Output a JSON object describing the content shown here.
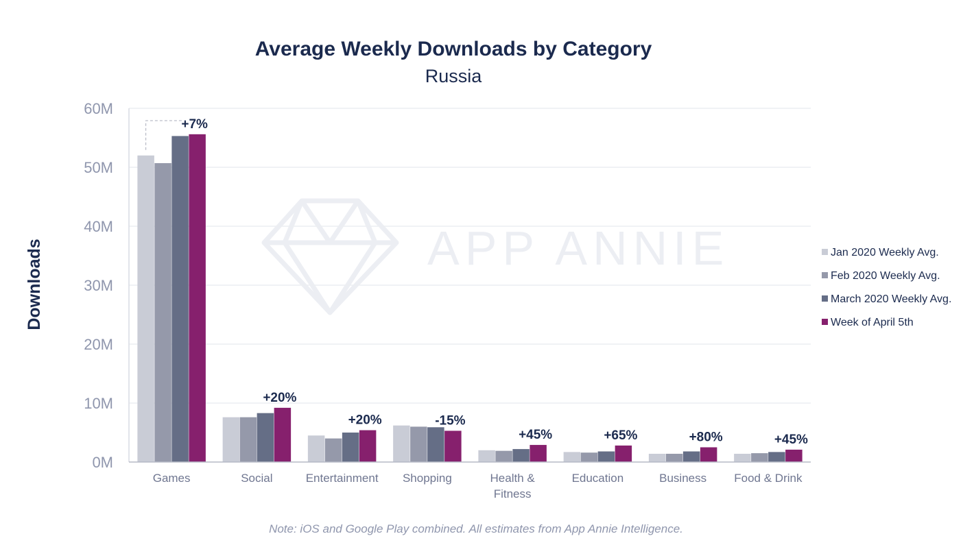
{
  "chart_data": {
    "type": "bar",
    "title": "Average Weekly Downloads by Category",
    "subtitle": "Russia",
    "xlabel": "",
    "ylabel": "Downloads",
    "ylim": [
      0,
      60
    ],
    "yticks": [
      0,
      10,
      20,
      30,
      40,
      50,
      60
    ],
    "ytick_labels": [
      "0M",
      "10M",
      "20M",
      "30M",
      "40M",
      "50M",
      "60M"
    ],
    "value_unit": "M",
    "grid": true,
    "legend_position": "right",
    "categories": [
      "Games",
      "Social",
      "Entertainment",
      "Shopping",
      "Health & Fitness",
      "Education",
      "Business",
      "Food & Drink"
    ],
    "category_label_lines": [
      [
        "Games"
      ],
      [
        "Social"
      ],
      [
        "Entertainment"
      ],
      [
        "Shopping"
      ],
      [
        "Health &",
        "Fitness"
      ],
      [
        "Education"
      ],
      [
        "Business"
      ],
      [
        "Food & Drink"
      ]
    ],
    "series": [
      {
        "name": "Jan 2020 Weekly Avg.",
        "color": "#c9ccd6",
        "values": [
          52.0,
          7.6,
          4.5,
          6.2,
          2.0,
          1.7,
          1.4,
          1.4
        ]
      },
      {
        "name": "Feb 2020 Weekly Avg.",
        "color": "#9599aa",
        "values": [
          50.7,
          7.6,
          4.0,
          6.0,
          1.9,
          1.6,
          1.4,
          1.5
        ]
      },
      {
        "name": "March 2020 Weekly Avg.",
        "color": "#656e86",
        "values": [
          55.3,
          8.3,
          5.0,
          5.9,
          2.2,
          1.8,
          1.8,
          1.7
        ]
      },
      {
        "name": "Week of April 5th",
        "color": "#86206d",
        "values": [
          55.6,
          9.2,
          5.4,
          5.3,
          2.9,
          2.8,
          2.5,
          2.1
        ]
      }
    ],
    "annotations": [
      "+7%",
      "+20%",
      "+20%",
      "-15%",
      "+45%",
      "+65%",
      "+80%",
      "+45%"
    ]
  },
  "note": "Note: iOS and Google Play combined. All estimates from App Annie Intelligence.",
  "watermark": {
    "text": "APP ANNIE",
    "icon": "diamond-logo-icon"
  },
  "colors": {
    "title": "#1b2a4e",
    "axis_text": "#8f96ad",
    "grid": "#eceef2"
  }
}
